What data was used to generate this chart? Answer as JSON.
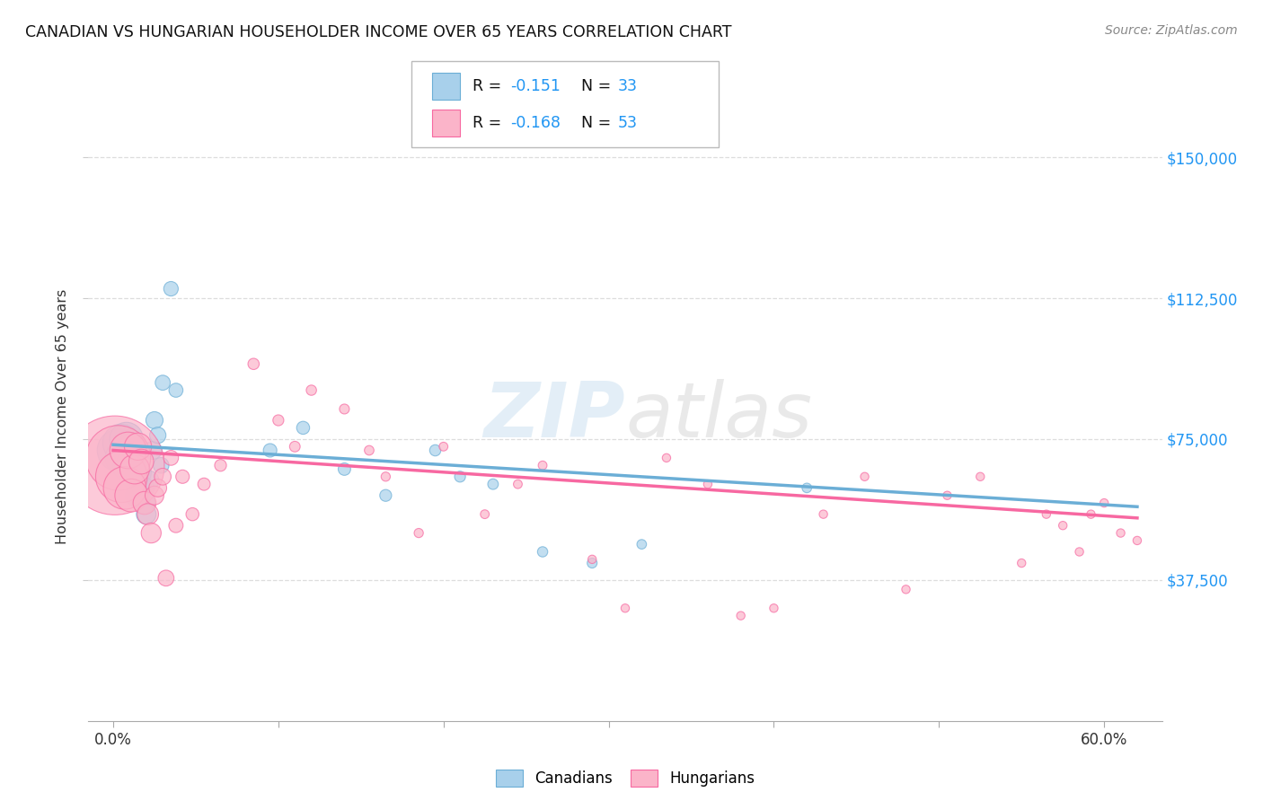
{
  "title": "CANADIAN VS HUNGARIAN HOUSEHOLDER INCOME OVER 65 YEARS CORRELATION CHART",
  "source": "Source: ZipAtlas.com",
  "ylabel": "Householder Income Over 65 years",
  "ytick_labels": [
    "$37,500",
    "$75,000",
    "$112,500",
    "$150,000"
  ],
  "ytick_vals": [
    37500,
    75000,
    112500,
    150000
  ],
  "xtick_labels_ends": [
    "0.0%",
    "60.0%"
  ],
  "xtick_vals_ends": [
    0.0,
    0.6
  ],
  "ylim": [
    0,
    162000
  ],
  "xlim": [
    -0.015,
    0.635
  ],
  "canadian_color": "#6baed6",
  "canadian_fill": "#a8d0eb",
  "hungarian_color": "#f768a1",
  "hungarian_fill": "#fbb4c9",
  "accent_blue": "#2196f3",
  "canadian_R": "-0.151",
  "canadian_N": "33",
  "hungarian_R": "-0.168",
  "hungarian_N": "53",
  "watermark_zip": "ZIP",
  "watermark_atlas": "atlas",
  "canadians_x": [
    0.003,
    0.005,
    0.006,
    0.008,
    0.009,
    0.01,
    0.011,
    0.012,
    0.013,
    0.015,
    0.016,
    0.018,
    0.019,
    0.02,
    0.022,
    0.024,
    0.025,
    0.027,
    0.029,
    0.03,
    0.035,
    0.038,
    0.095,
    0.115,
    0.14,
    0.165,
    0.195,
    0.21,
    0.23,
    0.26,
    0.29,
    0.32,
    0.42
  ],
  "canadians_y": [
    72000,
    74000,
    70000,
    75000,
    68000,
    71000,
    69000,
    73000,
    65000,
    60000,
    66000,
    62000,
    58000,
    55000,
    64000,
    72000,
    80000,
    76000,
    68000,
    90000,
    115000,
    88000,
    72000,
    78000,
    67000,
    60000,
    72000,
    65000,
    63000,
    45000,
    42000,
    47000,
    62000
  ],
  "canadians_size": [
    250,
    200,
    180,
    160,
    140,
    130,
    115,
    105,
    95,
    85,
    78,
    70,
    62,
    55,
    50,
    46,
    42,
    38,
    35,
    32,
    30,
    28,
    26,
    24,
    22,
    20,
    18,
    17,
    16,
    15,
    14,
    13,
    13
  ],
  "hungarians_x": [
    0.001,
    0.003,
    0.005,
    0.007,
    0.009,
    0.011,
    0.013,
    0.015,
    0.017,
    0.019,
    0.021,
    0.023,
    0.025,
    0.027,
    0.03,
    0.032,
    0.035,
    0.038,
    0.042,
    0.048,
    0.055,
    0.065,
    0.085,
    0.1,
    0.11,
    0.12,
    0.14,
    0.155,
    0.165,
    0.185,
    0.2,
    0.225,
    0.245,
    0.26,
    0.29,
    0.31,
    0.335,
    0.36,
    0.38,
    0.4,
    0.43,
    0.455,
    0.48,
    0.505,
    0.525,
    0.55,
    0.565,
    0.575,
    0.585,
    0.592,
    0.6,
    0.61,
    0.62
  ],
  "hungarians_y": [
    68000,
    70000,
    65000,
    62000,
    72000,
    60000,
    67000,
    73000,
    69000,
    58000,
    55000,
    50000,
    60000,
    62000,
    65000,
    38000,
    70000,
    52000,
    65000,
    55000,
    63000,
    68000,
    95000,
    80000,
    73000,
    88000,
    83000,
    72000,
    65000,
    50000,
    73000,
    55000,
    63000,
    68000,
    43000,
    30000,
    70000,
    63000,
    28000,
    30000,
    55000,
    65000,
    35000,
    60000,
    65000,
    42000,
    55000,
    52000,
    45000,
    55000,
    58000,
    50000,
    48000
  ],
  "hungarians_size": [
    1400,
    600,
    380,
    260,
    190,
    155,
    125,
    105,
    88,
    75,
    65,
    57,
    50,
    45,
    40,
    36,
    32,
    29,
    26,
    24,
    22,
    20,
    18,
    17,
    16,
    15,
    14,
    13,
    12,
    12,
    11,
    11,
    11,
    11,
    10,
    10,
    10,
    10,
    10,
    10,
    10,
    10,
    10,
    10,
    10,
    10,
    10,
    10,
    10,
    10,
    10,
    10,
    10
  ],
  "regression_canadian": [
    73500,
    57000
  ],
  "regression_hungarian": [
    72000,
    54000
  ]
}
